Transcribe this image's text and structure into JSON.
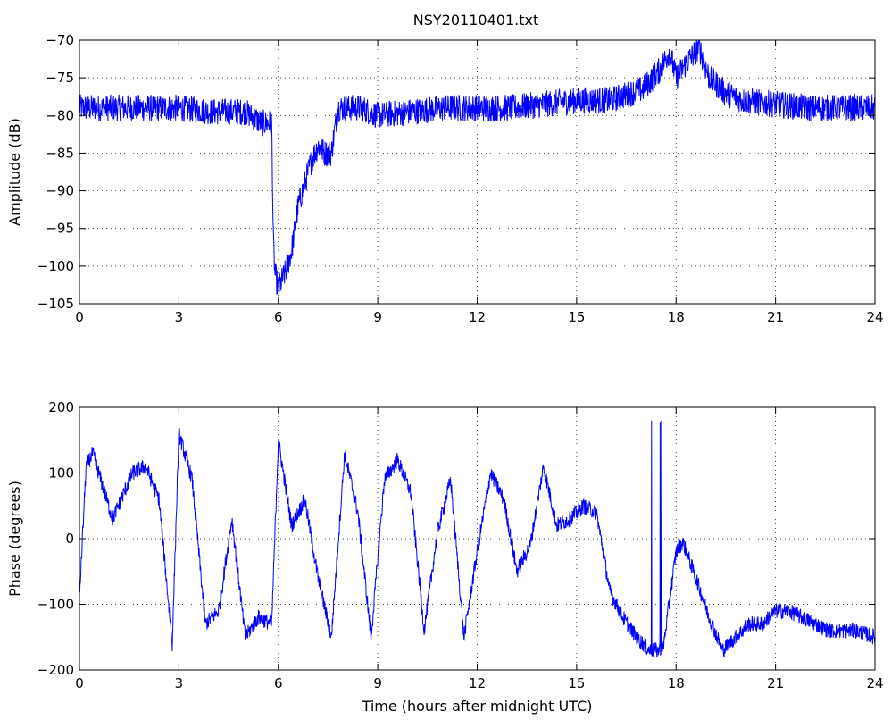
{
  "title": "NSY20110401.txt",
  "line_color": "#0000ff",
  "chart_data": [
    {
      "type": "line",
      "ylabel": "Amplitude (dB)",
      "xlabel": "",
      "xlim": [
        0,
        24
      ],
      "ylim": [
        -105,
        -70
      ],
      "xticks": [
        0,
        3,
        6,
        9,
        12,
        15,
        18,
        21,
        24
      ],
      "yticks": [
        -70,
        -75,
        -80,
        -85,
        -90,
        -95,
        -100,
        -105
      ],
      "grid": true,
      "series": [
        {
          "color": "#0000ff",
          "x": [
            0,
            1,
            2,
            3,
            4,
            5,
            5.5,
            5.8,
            5.85,
            5.9,
            6.0,
            6.2,
            6.4,
            6.6,
            6.8,
            7.0,
            7.2,
            7.4,
            7.6,
            7.8,
            8.5,
            9,
            10,
            11,
            12,
            13,
            14,
            15,
            16,
            17,
            17.5,
            17.8,
            18.0,
            18.4,
            18.7,
            19.0,
            19.5,
            20,
            21,
            22,
            23,
            24
          ],
          "y": [
            -79,
            -79,
            -79,
            -79,
            -79.5,
            -79.5,
            -81,
            -81,
            -97,
            -101,
            -103,
            -101,
            -98,
            -92,
            -89,
            -86,
            -84,
            -85,
            -85,
            -79,
            -79,
            -80,
            -79.5,
            -79,
            -79,
            -79,
            -78.5,
            -78,
            -78,
            -76.5,
            -74,
            -71.5,
            -75,
            -72.5,
            -71,
            -75,
            -77,
            -78,
            -78.5,
            -79,
            -79,
            -79
          ]
        }
      ]
    },
    {
      "type": "line",
      "ylabel": "Phase (degrees)",
      "xlabel": "Time (hours after midnight UTC)",
      "xlim": [
        0,
        24
      ],
      "ylim": [
        -200,
        200
      ],
      "xticks": [
        0,
        3,
        6,
        9,
        12,
        15,
        18,
        21,
        24
      ],
      "yticks": [
        200,
        100,
        0,
        -100,
        -200
      ],
      "grid": true,
      "series": [
        {
          "color": "#0000ff",
          "x": [
            0,
            0.2,
            0.4,
            1.0,
            1.6,
            2.0,
            2.4,
            2.8,
            3.0,
            3.4,
            3.8,
            4.2,
            4.6,
            5.0,
            5.4,
            5.8,
            6.0,
            6.4,
            6.8,
            7.2,
            7.6,
            8.0,
            8.4,
            8.8,
            9.2,
            9.6,
            10.0,
            10.4,
            10.8,
            11.2,
            11.6,
            12.0,
            12.4,
            12.8,
            13.2,
            13.6,
            14.0,
            14.4,
            14.8,
            15.2,
            15.6,
            16.0,
            16.4,
            16.8,
            17.2,
            17.6,
            18.0,
            18.2,
            18.6,
            19.0,
            19.4,
            19.8,
            20.2,
            20.6,
            21.0,
            21.4,
            21.8,
            22.2,
            22.6,
            23.0,
            23.4,
            24.0
          ],
          "y": [
            -90,
            110,
            130,
            30,
            100,
            110,
            60,
            -160,
            160,
            90,
            -130,
            -110,
            30,
            -150,
            -120,
            -130,
            150,
            20,
            60,
            -60,
            -150,
            130,
            40,
            -150,
            90,
            120,
            70,
            -140,
            10,
            90,
            -150,
            -20,
            100,
            60,
            -50,
            -10,
            110,
            20,
            30,
            50,
            40,
            -80,
            -120,
            -150,
            -170,
            -170,
            -20,
            -5,
            -60,
            -120,
            -170,
            -150,
            -130,
            -130,
            -110,
            -110,
            -120,
            -130,
            -140,
            -140,
            -140,
            -150
          ]
        }
      ]
    }
  ]
}
